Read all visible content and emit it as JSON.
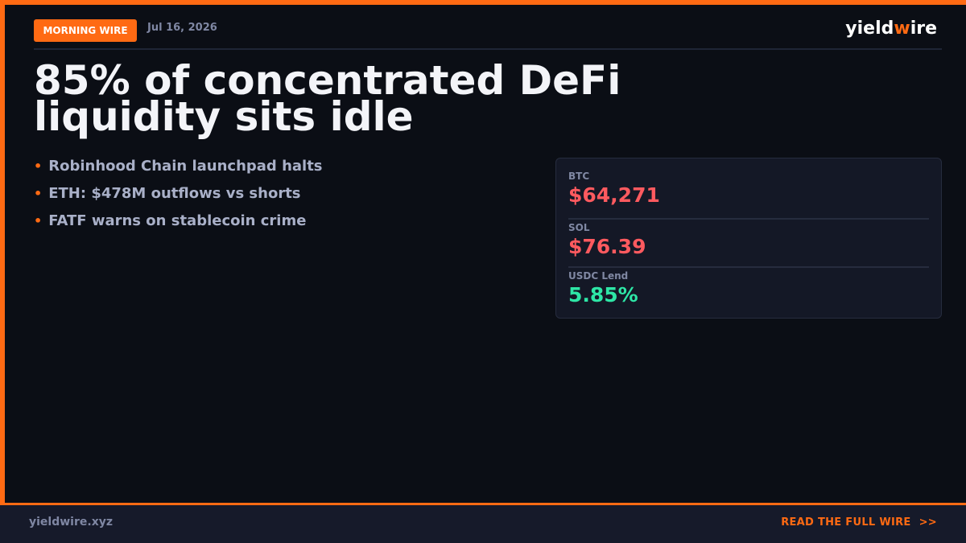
{
  "header": {
    "badge": "MORNING WIRE",
    "date": "Jul 16, 2026",
    "brand": {
      "start": "yield",
      "accent": "w",
      "end": "ire"
    }
  },
  "headline": "85% of concentrated DeFi liquidity sits idle",
  "bullets": [
    "Robinhood Chain launchpad halts",
    "ETH: $478M outflows vs shorts",
    "FATF warns on stablecoin crime"
  ],
  "tickers": [
    {
      "label": "BTC",
      "value": "$64,271",
      "color": "#ff5a5f"
    },
    {
      "label": "SOL",
      "value": "$76.39",
      "color": "#ff5a5f"
    },
    {
      "label": "USDC Lend",
      "value": "5.85%",
      "color": "#2ee6a6"
    }
  ],
  "footer": {
    "site": "yieldwire.xyz",
    "cta": "READ THE FULL WIRE",
    "arrows": ">>"
  }
}
